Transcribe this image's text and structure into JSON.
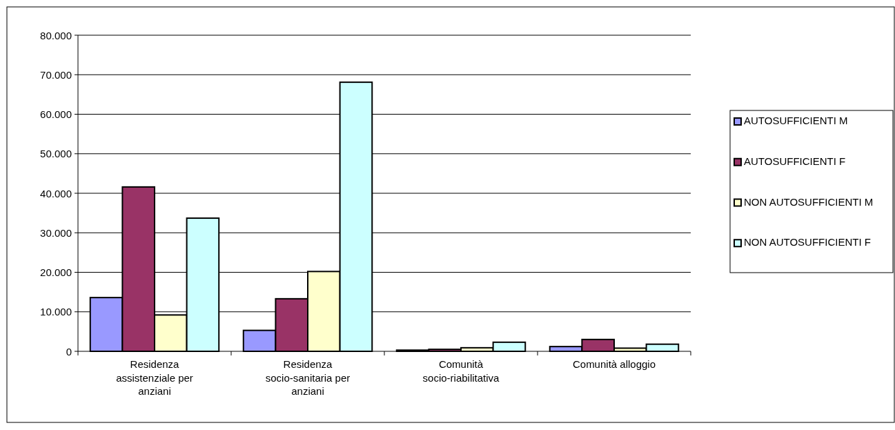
{
  "chart_data": {
    "type": "bar",
    "categories": [
      "Residenza assistenziale per anziani",
      "Residenza socio-sanitaria per anziani",
      "Comunità socio-riabilitativa",
      "Comunità alloggio"
    ],
    "series": [
      {
        "name": "AUTOSUFFICIENTI M",
        "color": "#9999ff",
        "values": [
          13600,
          5300,
          300,
          1200
        ]
      },
      {
        "name": "AUTOSUFFICIENTI F",
        "color": "#993366",
        "values": [
          41600,
          13300,
          500,
          3000
        ]
      },
      {
        "name": "NON AUTOSUFFICIENTI M",
        "color": "#ffffcc",
        "values": [
          9200,
          20200,
          900,
          800
        ]
      },
      {
        "name": "NON AUTOSUFFICIENTI F",
        "color": "#ccffff",
        "values": [
          33700,
          68100,
          2300,
          1800
        ]
      }
    ],
    "ylim": [
      0,
      80000
    ],
    "yticks": [
      0,
      {
        "value": 10000,
        "label": "10.000"
      },
      {
        "value": 20000,
        "label": "20.000"
      },
      {
        "value": 30000,
        "label": "30.000"
      },
      {
        "value": 40000,
        "label": "40.000"
      },
      {
        "value": 50000,
        "label": "50.000"
      },
      {
        "value": 60000,
        "label": "60.000"
      },
      {
        "value": 70000,
        "label": "70.000"
      },
      {
        "value": 80000,
        "label": "80.000"
      }
    ],
    "grid": "y",
    "legend": "right"
  }
}
